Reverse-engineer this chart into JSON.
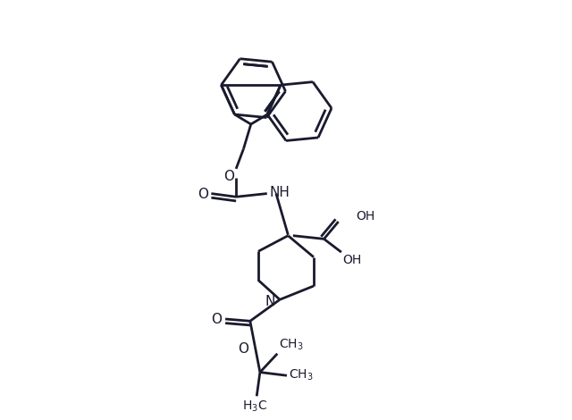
{
  "bg_color": "#ffffff",
  "bond_color": "#1a1a2e",
  "line_width": 2.0,
  "figsize": [
    6.4,
    4.7
  ],
  "dpi": 100,
  "xlim": [
    0,
    10
  ],
  "ylim": [
    0,
    10
  ]
}
